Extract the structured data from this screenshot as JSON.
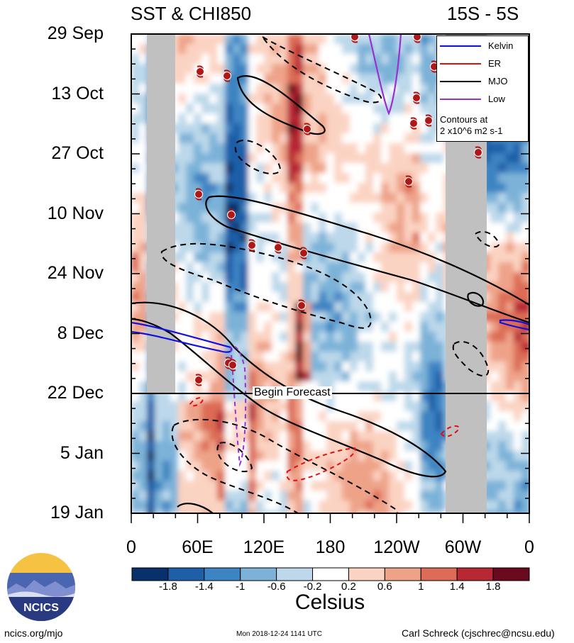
{
  "header": {
    "title_left": "SST & CHI850",
    "title_right": "15S - 5S"
  },
  "chart_data": {
    "type": "heatmap",
    "x_ticks": [
      "0",
      "60E",
      "120E",
      "180",
      "120W",
      "60W",
      "0"
    ],
    "y_ticks": [
      "29 Sep",
      "13 Oct",
      "27 Oct",
      "10 Nov",
      "24 Nov",
      "8 Dec",
      "22 Dec",
      "5 Jan",
      "19 Jan"
    ],
    "xlim": [
      0,
      360
    ],
    "forecast_label": "Begin Forecast",
    "forecast_start": "22 Dec",
    "legend": [
      {
        "name": "Kelvin",
        "color": "#1010e0"
      },
      {
        "name": "ER",
        "color": "#e01010"
      },
      {
        "name": "MJO",
        "color": "#000000"
      },
      {
        "name": "Low",
        "color": "#9b30d0"
      }
    ],
    "contour_note": [
      "Contours at",
      "2 x10^6 m2 s-1"
    ],
    "colorbar": {
      "label": "Celsius",
      "ticks": [
        "-1.8",
        "-1.4",
        "-1",
        "-0.6",
        "-0.2",
        "0.2",
        "0.6",
        "1",
        "1.4",
        "1.8"
      ],
      "colors": [
        "#08306b",
        "#1f5fa8",
        "#3d84c2",
        "#7cb2d8",
        "#bcd8ea",
        "#ffffff",
        "#fbd3c2",
        "#eea389",
        "#dc6c55",
        "#b72834",
        "#6b0a1e"
      ]
    }
  },
  "footer": {
    "left": "ncics.org/mjo",
    "center": "Mon 2018-12-24 1141 UTC",
    "right": "Carl Schreck (cjschrec@ncsu.edu)"
  },
  "logo": {
    "text": "NCICS"
  }
}
